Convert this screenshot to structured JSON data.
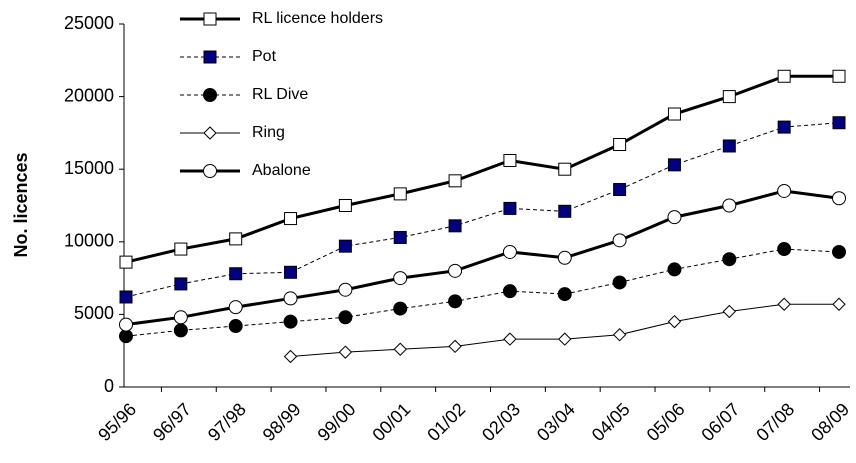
{
  "chart_data": {
    "type": "line",
    "y_label": "No. licences",
    "categories": [
      "95/96",
      "96/97",
      "97/98",
      "98/99",
      "99/00",
      "00/01",
      "01/02",
      "02/03",
      "03/04",
      "04/05",
      "05/06",
      "06/07",
      "07/08",
      "08/09"
    ],
    "ylim": [
      0,
      25000
    ],
    "yticks": [
      0,
      5000,
      10000,
      15000,
      20000,
      25000
    ],
    "grid": false,
    "legend": "top-left",
    "series": [
      {
        "name": "RL licence holders",
        "color": "#000000",
        "marker": "square",
        "marker_fill": "#ffffff",
        "dashed": false,
        "line_width": 3,
        "values": [
          8600,
          9500,
          10200,
          11600,
          12500,
          13300,
          14200,
          15600,
          15000,
          16700,
          18800,
          20000,
          21400,
          21400
        ]
      },
      {
        "name": "Pot",
        "color": "#000000",
        "marker": "square",
        "marker_fill": "#000080",
        "dashed": true,
        "line_width": 1,
        "values": [
          6200,
          7100,
          7800,
          7900,
          9700,
          10300,
          11100,
          12300,
          12100,
          13600,
          15300,
          16600,
          17900,
          18200
        ]
      },
      {
        "name": "RL Dive",
        "color": "#000000",
        "marker": "circle",
        "marker_fill": "#000000",
        "dashed": true,
        "line_width": 1,
        "values": [
          3500,
          3900,
          4200,
          4500,
          4800,
          5400,
          5900,
          6600,
          6400,
          7200,
          8100,
          8800,
          9500,
          9300
        ]
      },
      {
        "name": "Ring",
        "color": "#000000",
        "marker": "diamond",
        "marker_fill": "#ffffff",
        "dashed": false,
        "line_width": 1,
        "values": [
          null,
          null,
          null,
          2100,
          2400,
          2600,
          2800,
          3300,
          3300,
          3600,
          4500,
          5200,
          5700,
          5700
        ]
      },
      {
        "name": "Abalone",
        "color": "#000000",
        "marker": "circle",
        "marker_fill": "#ffffff",
        "dashed": false,
        "line_width": 3,
        "values": [
          4300,
          4800,
          5500,
          6100,
          6700,
          7500,
          8000,
          9300,
          8900,
          10100,
          11700,
          12500,
          13500,
          13000
        ]
      }
    ]
  }
}
